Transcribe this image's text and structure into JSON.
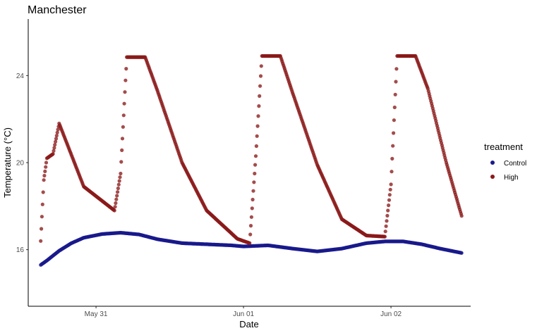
{
  "chart_data": {
    "type": "scatter",
    "title": "Manchester",
    "xlabel": "Date",
    "ylabel": "Temperature (°C)",
    "x_unit": "days",
    "xlim": [
      "2021-05-30T12:58",
      "2021-06-02T12:58"
    ],
    "ylim": [
      13.4,
      26.6
    ],
    "x_ticks": [
      {
        "value": "2021-05-31T00:00",
        "label": "May 31"
      },
      {
        "value": "2021-06-01T00:00",
        "label": "Jun 01"
      },
      {
        "value": "2021-06-02T00:00",
        "label": "Jun 02"
      }
    ],
    "y_ticks": [
      16,
      20,
      24
    ],
    "grid": false,
    "legend": {
      "title": "treatment",
      "position": "right"
    },
    "series": [
      {
        "name": "Control",
        "color": "#1a1a8c",
        "points": [
          [
            "2021-05-30T15:00",
            15.3
          ],
          [
            "2021-05-30T16:00",
            15.5
          ],
          [
            "2021-05-30T18:00",
            15.95
          ],
          [
            "2021-05-30T20:00",
            16.3
          ],
          [
            "2021-05-30T22:00",
            16.55
          ],
          [
            "2021-05-31T01:00",
            16.72
          ],
          [
            "2021-05-31T04:00",
            16.78
          ],
          [
            "2021-05-31T07:00",
            16.7
          ],
          [
            "2021-05-31T10:00",
            16.48
          ],
          [
            "2021-05-31T14:00",
            16.3
          ],
          [
            "2021-05-31T18:00",
            16.25
          ],
          [
            "2021-05-31T22:00",
            16.2
          ],
          [
            "2021-06-01T00:00",
            16.15
          ],
          [
            "2021-06-01T04:00",
            16.2
          ],
          [
            "2021-06-01T08:00",
            16.05
          ],
          [
            "2021-06-01T12:00",
            15.92
          ],
          [
            "2021-06-01T16:00",
            16.05
          ],
          [
            "2021-06-01T20:00",
            16.3
          ],
          [
            "2021-06-01T23:00",
            16.38
          ],
          [
            "2021-06-02T02:00",
            16.38
          ],
          [
            "2021-06-02T05:00",
            16.25
          ],
          [
            "2021-06-02T08:00",
            16.05
          ],
          [
            "2021-06-02T11:30",
            15.85
          ]
        ]
      },
      {
        "name": "High",
        "color": "#8b1a1a",
        "points": [
          [
            "2021-05-30T15:00",
            16.4
          ],
          [
            "2021-05-30T15:30",
            19.2
          ],
          [
            "2021-05-30T16:00",
            20.2
          ],
          [
            "2021-05-30T17:00",
            20.4
          ],
          [
            "2021-05-30T18:00",
            21.8
          ],
          [
            "2021-05-30T22:00",
            18.9
          ],
          [
            "2021-05-31T03:00",
            17.8
          ],
          [
            "2021-05-31T04:00",
            19.5
          ],
          [
            "2021-05-31T05:00",
            24.85
          ],
          [
            "2021-05-31T08:00",
            24.85
          ],
          [
            "2021-05-31T10:00",
            23.3
          ],
          [
            "2021-05-31T14:00",
            20.0
          ],
          [
            "2021-05-31T18:00",
            17.8
          ],
          [
            "2021-05-31T23:00",
            16.5
          ],
          [
            "2021-06-01T01:00",
            16.3
          ],
          [
            "2021-06-01T02:00",
            20.3
          ],
          [
            "2021-06-01T03:00",
            24.9
          ],
          [
            "2021-06-01T06:00",
            24.9
          ],
          [
            "2021-06-01T08:00",
            23.2
          ],
          [
            "2021-06-01T12:00",
            19.9
          ],
          [
            "2021-06-01T16:00",
            17.4
          ],
          [
            "2021-06-01T20:00",
            16.65
          ],
          [
            "2021-06-01T23:00",
            16.6
          ],
          [
            "2021-06-02T00:00",
            19.0
          ],
          [
            "2021-06-02T01:00",
            24.9
          ],
          [
            "2021-06-02T04:00",
            24.9
          ],
          [
            "2021-06-02T06:00",
            23.4
          ],
          [
            "2021-06-02T09:00",
            20.0
          ],
          [
            "2021-06-02T11:30",
            17.55
          ]
        ]
      }
    ]
  }
}
